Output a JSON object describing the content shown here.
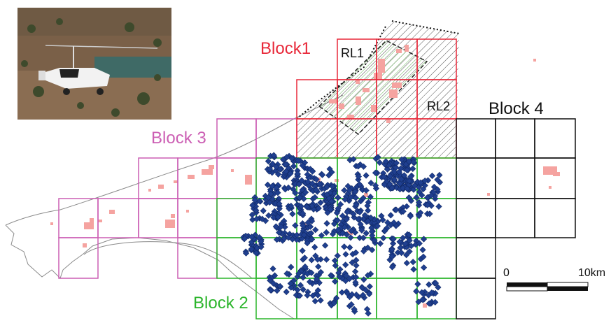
{
  "colors": {
    "block1": "#e8293a",
    "block2": "#2bb52b",
    "block3": "#cc5fb4",
    "block4": "#111111",
    "detections": "#1f3f8f",
    "vegetation": "#f5a3a0",
    "coast": "#888888",
    "hatch": "#444444",
    "rl1_fill": "#9ed08f"
  },
  "labels": {
    "block1": "Block1",
    "block2": "Block 2",
    "block3": "Block 3",
    "block4": "Block 4",
    "rl1": "RL1",
    "rl2": "RL2"
  },
  "scale_bar": {
    "start_label": "0",
    "end_label": "10km"
  },
  "photo": {
    "subject": "gyrocopter-aerial-photo",
    "caption_on_aircraft": ""
  },
  "icons": {
    "photo": "aircraft-photo-icon"
  }
}
